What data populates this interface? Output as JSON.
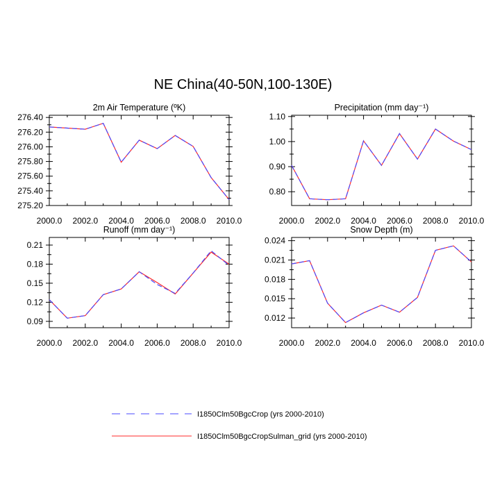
{
  "title": "NE China(40-50N,100-130E)",
  "colors": {
    "blue_series": "#4a4aff",
    "red_series": "#ff2a2a"
  },
  "legend": {
    "entries": [
      {
        "label": "I1850Clm50BgcCrop (yrs 2000-2010)",
        "style": "dashed",
        "color": "#4a4aff"
      },
      {
        "label": "I1850Clm50BgcCropSulman_grid (yrs 2000-2010)",
        "style": "solid",
        "color": "#ff2a2a"
      }
    ]
  },
  "chart_data": [
    {
      "type": "line",
      "title": "2m Air Temperature (ºK)",
      "x": [
        2000,
        2001,
        2002,
        2003,
        2004,
        2005,
        2006,
        2007,
        2008,
        2009,
        2010
      ],
      "xlim": [
        2000,
        2010
      ],
      "ylim": [
        275.2,
        276.43
      ],
      "xticks": [
        "2000.0",
        "2002.0",
        "2004.0",
        "2006.0",
        "2008.0",
        "2010.0"
      ],
      "yticks": [
        275.2,
        275.4,
        275.6,
        275.8,
        276.0,
        276.2,
        276.4
      ],
      "ytick_labels": [
        "275.20",
        "275.40",
        "275.60",
        "275.80",
        "276.00",
        "276.20",
        "276.40"
      ],
      "series": [
        {
          "name": "I1850Clm50BgcCrop (yrs 2000-2010)",
          "values": [
            276.27,
            276.255,
            276.24,
            276.32,
            275.79,
            276.09,
            275.975,
            276.155,
            276.005,
            275.58,
            275.28
          ]
        },
        {
          "name": "I1850Clm50BgcCropSulman_grid (yrs 2000-2010)",
          "values": [
            276.27,
            276.255,
            276.24,
            276.32,
            275.79,
            276.09,
            275.975,
            276.155,
            276.005,
            275.58,
            275.28
          ]
        }
      ]
    },
    {
      "type": "line",
      "title": "Precipitation (mm day⁻¹)",
      "x": [
        2000,
        2001,
        2002,
        2003,
        2004,
        2005,
        2006,
        2007,
        2008,
        2009,
        2010
      ],
      "xlim": [
        2000,
        2010
      ],
      "ylim": [
        0.745,
        1.105
      ],
      "xticks": [
        "2000.0",
        "2002.0",
        "2004.0",
        "2006.0",
        "2008.0",
        "2010.0"
      ],
      "yticks": [
        0.8,
        0.9,
        1.0,
        1.1
      ],
      "ytick_labels": [
        "0.80",
        "0.90",
        "1.00",
        "1.10"
      ],
      "series": [
        {
          "name": "I1850Clm50BgcCrop (yrs 2000-2010)",
          "values": [
            0.905,
            0.772,
            0.768,
            0.772,
            1.003,
            0.905,
            1.032,
            0.93,
            1.05,
            1.002,
            0.968
          ]
        },
        {
          "name": "I1850Clm50BgcCropSulman_grid (yrs 2000-2010)",
          "values": [
            0.905,
            0.772,
            0.768,
            0.772,
            1.003,
            0.905,
            1.032,
            0.93,
            1.05,
            1.002,
            0.968
          ]
        }
      ]
    },
    {
      "type": "line",
      "title": "Runoff (mm day⁻¹)",
      "x": [
        2000,
        2001,
        2002,
        2003,
        2004,
        2005,
        2006,
        2007,
        2008,
        2009,
        2010
      ],
      "xlim": [
        2000,
        2010
      ],
      "ylim": [
        0.08,
        0.222
      ],
      "xticks": [
        "2000.0",
        "2002.0",
        "2004.0",
        "2006.0",
        "2008.0",
        "2010.0"
      ],
      "yticks": [
        0.09,
        0.12,
        0.15,
        0.18,
        0.21
      ],
      "ytick_labels": [
        "0.09",
        "0.12",
        "0.15",
        "0.18",
        "0.21"
      ],
      "series": [
        {
          "name": "I1850Clm50BgcCrop (yrs 2000-2010)",
          "values": [
            0.124,
            0.095,
            0.099,
            0.132,
            0.141,
            0.168,
            0.148,
            0.134,
            0.166,
            0.201,
            0.178
          ]
        },
        {
          "name": "I1850Clm50BgcCropSulman_grid (yrs 2000-2010)",
          "values": [
            0.124,
            0.095,
            0.099,
            0.132,
            0.141,
            0.168,
            0.151,
            0.133,
            0.166,
            0.199,
            0.18
          ]
        }
      ]
    },
    {
      "type": "line",
      "title": "Snow Depth (m)",
      "x": [
        2000,
        2001,
        2002,
        2003,
        2004,
        2005,
        2006,
        2007,
        2008,
        2009,
        2010
      ],
      "xlim": [
        2000,
        2010
      ],
      "ylim": [
        0.0105,
        0.0245
      ],
      "xticks": [
        "2000.0",
        "2002.0",
        "2004.0",
        "2006.0",
        "2008.0",
        "2010.0"
      ],
      "yticks": [
        0.012,
        0.015,
        0.018,
        0.021,
        0.024
      ],
      "ytick_labels": [
        "0.012",
        "0.015",
        "0.018",
        "0.021",
        "0.024"
      ],
      "series": [
        {
          "name": "I1850Clm50BgcCrop (yrs 2000-2010)",
          "values": [
            0.0204,
            0.0209,
            0.0143,
            0.0113,
            0.0128,
            0.014,
            0.0129,
            0.0152,
            0.0225,
            0.0232,
            0.0207
          ]
        },
        {
          "name": "I1850Clm50BgcCropSulman_grid (yrs 2000-2010)",
          "values": [
            0.0204,
            0.0209,
            0.0143,
            0.0113,
            0.0128,
            0.014,
            0.0129,
            0.0152,
            0.0225,
            0.0232,
            0.0207
          ]
        }
      ]
    }
  ]
}
